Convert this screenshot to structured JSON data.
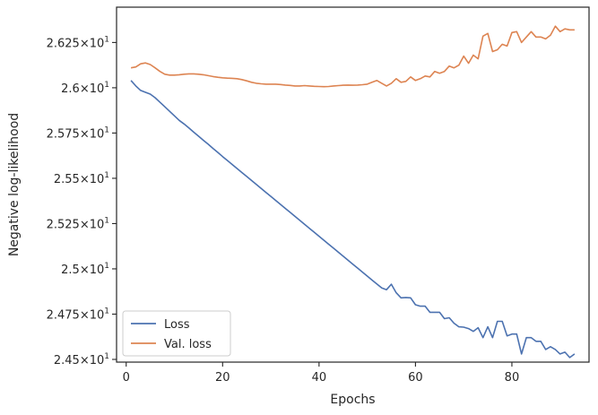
{
  "chart_data": {
    "type": "line",
    "title": "",
    "xlabel": "Epochs",
    "ylabel": "Negative log-likelihood",
    "xlim": [
      -2,
      96
    ],
    "ylim": [
      24.485,
      26.445
    ],
    "x_ticks": [
      {
        "value": 0,
        "label": "0"
      },
      {
        "value": 20,
        "label": "20"
      },
      {
        "value": 40,
        "label": "40"
      },
      {
        "value": 60,
        "label": "60"
      },
      {
        "value": 80,
        "label": "80"
      }
    ],
    "y_ticks": [
      {
        "value": 24.5,
        "mantissa": "2.45",
        "base": "10",
        "exp": "1"
      },
      {
        "value": 24.75,
        "mantissa": "2.475",
        "base": "10",
        "exp": "1"
      },
      {
        "value": 25.0,
        "mantissa": "2.5",
        "base": "10",
        "exp": "1"
      },
      {
        "value": 25.25,
        "mantissa": "2.525",
        "base": "10",
        "exp": "1"
      },
      {
        "value": 25.5,
        "mantissa": "2.55",
        "base": "10",
        "exp": "1"
      },
      {
        "value": 25.75,
        "mantissa": "2.575",
        "base": "10",
        "exp": "1"
      },
      {
        "value": 26.0,
        "mantissa": "2.6",
        "base": "10",
        "exp": "1"
      },
      {
        "value": 26.25,
        "mantissa": "2.625",
        "base": "10",
        "exp": "1"
      }
    ],
    "grid": false,
    "legend": {
      "position": "lower-left"
    },
    "series": [
      {
        "name": "Loss",
        "color": "#4c72b0",
        "x": [
          1,
          2,
          3,
          4,
          5,
          6,
          7,
          8,
          9,
          10,
          11,
          12,
          13,
          14,
          15,
          16,
          17,
          18,
          19,
          20,
          21,
          22,
          23,
          24,
          25,
          26,
          27,
          28,
          29,
          30,
          31,
          32,
          33,
          34,
          35,
          36,
          37,
          38,
          39,
          40,
          41,
          42,
          43,
          44,
          45,
          46,
          47,
          48,
          49,
          50,
          51,
          52,
          53,
          54,
          55,
          56,
          57,
          58,
          59,
          60,
          61,
          62,
          63,
          64,
          65,
          66,
          67,
          68,
          69,
          70,
          71,
          72,
          73,
          74,
          75,
          76,
          77,
          78,
          79,
          80,
          81,
          82,
          83,
          84,
          85,
          86,
          87,
          88,
          89,
          90,
          91,
          92,
          93
        ],
        "values": [
          26.04,
          26.01,
          25.985,
          25.975,
          25.965,
          25.945,
          25.92,
          25.895,
          25.87,
          25.845,
          25.82,
          25.8,
          25.778,
          25.755,
          25.733,
          25.71,
          25.688,
          25.665,
          25.643,
          25.62,
          25.598,
          25.576,
          25.554,
          25.532,
          25.51,
          25.488,
          25.466,
          25.444,
          25.422,
          25.4,
          25.378,
          25.356,
          25.334,
          25.312,
          25.29,
          25.268,
          25.246,
          25.224,
          25.202,
          25.18,
          25.158,
          25.136,
          25.114,
          25.092,
          25.07,
          25.048,
          25.026,
          25.004,
          24.982,
          24.96,
          24.938,
          24.916,
          24.895,
          24.885,
          24.915,
          24.868,
          24.84,
          24.842,
          24.84,
          24.802,
          24.794,
          24.794,
          24.76,
          24.76,
          24.76,
          24.725,
          24.73,
          24.7,
          24.68,
          24.678,
          24.67,
          24.655,
          24.675,
          24.62,
          24.68,
          24.62,
          24.71,
          24.71,
          24.63,
          24.64,
          24.64,
          24.53,
          24.62,
          24.62,
          24.6,
          24.6,
          24.555,
          24.57,
          24.555,
          24.53,
          24.54,
          24.51,
          24.53
        ]
      },
      {
        "name": "Val. loss",
        "color": "#dd8452",
        "x": [
          1,
          2,
          3,
          4,
          5,
          6,
          7,
          8,
          9,
          10,
          11,
          12,
          13,
          14,
          15,
          16,
          17,
          18,
          19,
          20,
          21,
          22,
          23,
          24,
          25,
          26,
          27,
          28,
          29,
          30,
          31,
          32,
          33,
          34,
          35,
          36,
          37,
          38,
          39,
          40,
          41,
          42,
          43,
          44,
          45,
          46,
          47,
          48,
          49,
          50,
          51,
          52,
          53,
          54,
          55,
          56,
          57,
          58,
          59,
          60,
          61,
          62,
          63,
          64,
          65,
          66,
          67,
          68,
          69,
          70,
          71,
          72,
          73,
          74,
          75,
          76,
          77,
          78,
          79,
          80,
          81,
          82,
          83,
          84,
          85,
          86,
          87,
          88,
          89,
          90,
          91,
          92,
          93
        ],
        "values": [
          26.11,
          26.115,
          26.132,
          26.137,
          26.128,
          26.11,
          26.09,
          26.075,
          26.07,
          26.07,
          26.072,
          26.075,
          26.077,
          26.077,
          26.075,
          26.072,
          26.067,
          26.062,
          26.058,
          26.055,
          26.053,
          26.052,
          26.05,
          26.045,
          26.038,
          26.03,
          26.025,
          26.022,
          26.02,
          26.02,
          26.02,
          26.018,
          26.015,
          26.013,
          26.01,
          26.01,
          26.012,
          26.01,
          26.008,
          26.007,
          26.006,
          26.007,
          26.01,
          26.012,
          26.014,
          26.015,
          26.014,
          26.015,
          26.017,
          26.02,
          26.03,
          26.04,
          26.025,
          26.01,
          26.025,
          26.05,
          26.03,
          26.035,
          26.06,
          26.04,
          26.05,
          26.065,
          26.06,
          26.09,
          26.08,
          26.09,
          26.12,
          26.11,
          26.125,
          26.175,
          26.135,
          26.18,
          26.16,
          26.285,
          26.3,
          26.2,
          26.21,
          26.24,
          26.23,
          26.305,
          26.31,
          26.25,
          26.28,
          26.31,
          26.28,
          26.28,
          26.27,
          26.29,
          26.34,
          26.31,
          26.325,
          26.32,
          26.32
        ]
      }
    ]
  }
}
